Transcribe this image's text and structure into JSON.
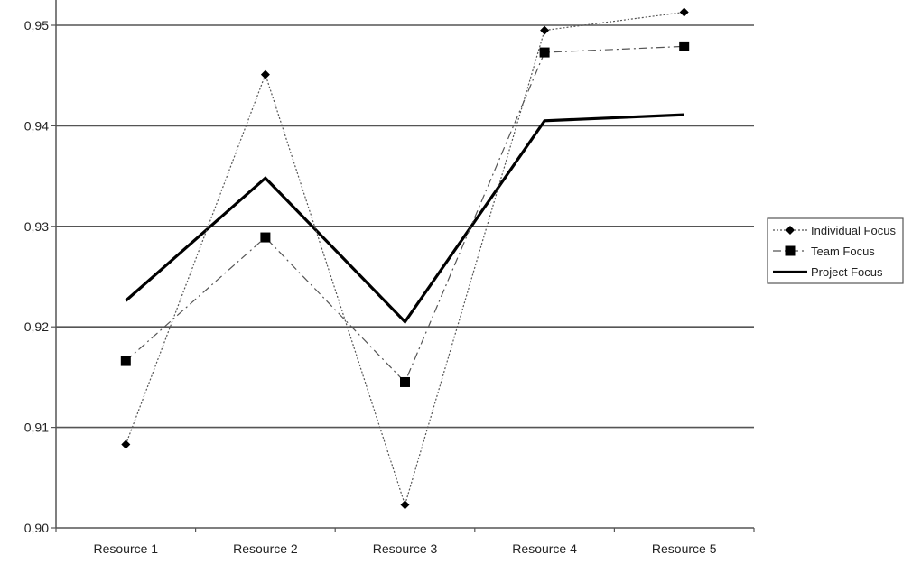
{
  "chart_data": {
    "type": "line",
    "title": "",
    "xlabel": "",
    "ylabel": "",
    "categories": [
      "Resource 1",
      "Resource 2",
      "Resource 3",
      "Resource 4",
      "Resource 5"
    ],
    "ylim": [
      0.9,
      0.95
    ],
    "yticks": [
      0.9,
      0.91,
      0.92,
      0.93,
      0.94,
      0.95
    ],
    "ytick_labels": [
      "0,90",
      "0,91",
      "0,92",
      "0,93",
      "0,94",
      "0,95"
    ],
    "grid": "horizontal",
    "legend": "right",
    "series": [
      {
        "name": "Individual Focus",
        "values": [
          0.9083,
          0.9451,
          0.9023,
          0.9495,
          0.9513
        ],
        "line_style": "dotted",
        "marker": "diamond",
        "color": "#555555"
      },
      {
        "name": "Team Focus",
        "values": [
          0.9166,
          0.9289,
          0.9145,
          0.9473,
          0.9479
        ],
        "line_style": "dash-dot",
        "marker": "square",
        "color": "#555555"
      },
      {
        "name": "Project Focus",
        "values": [
          0.9226,
          0.9348,
          0.9205,
          0.9405,
          0.9411
        ],
        "line_style": "solid-thick",
        "marker": "none",
        "color": "#000000"
      }
    ]
  }
}
